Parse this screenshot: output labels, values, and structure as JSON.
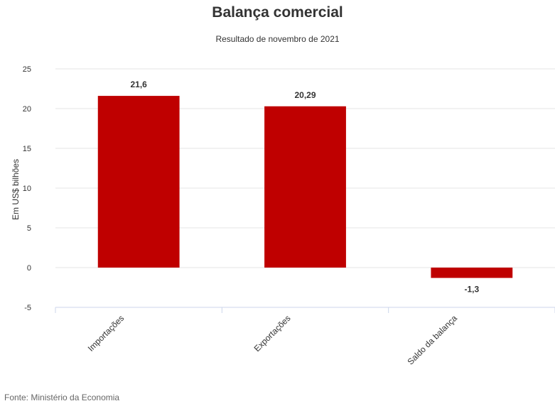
{
  "chart_data": {
    "type": "bar",
    "title": "Balança comercial",
    "subtitle": "Resultado de novembro de 2021",
    "xlabel": "",
    "ylabel": "Em US$ bilhões",
    "categories": [
      "Importações",
      "Exportações",
      "Saldo da balança"
    ],
    "values": [
      21.6,
      20.29,
      -1.3
    ],
    "data_labels": [
      "21,6",
      "20,29",
      "-1,3"
    ],
    "ylim": [
      -5,
      25
    ],
    "yticks": [
      25,
      20,
      15,
      10,
      5,
      0,
      -5
    ],
    "grid": true,
    "legend": "none",
    "bar_color": "#bf0000"
  },
  "source": "Fonte: Ministério da Economia"
}
